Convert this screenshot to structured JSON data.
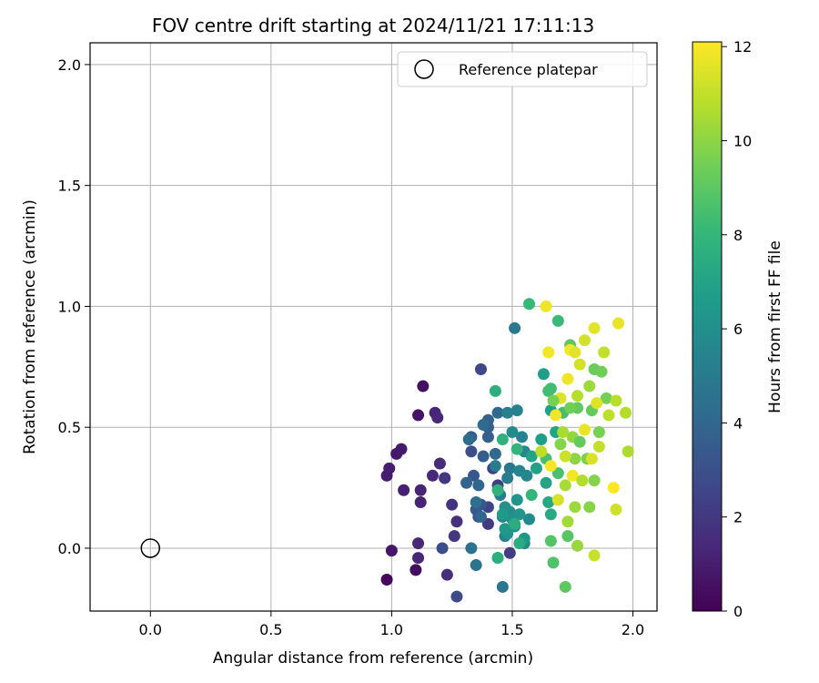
{
  "chart_data": {
    "type": "scatter",
    "title": "FOV centre drift starting at 2024/11/21 17:11:13",
    "xlabel": "Angular distance from reference (arcmin)",
    "ylabel": "Rotation from reference (arcmin)",
    "xlim": [
      -0.25,
      2.1
    ],
    "ylim": [
      -0.26,
      2.09
    ],
    "xticks": [
      0.0,
      0.5,
      1.0,
      1.5,
      2.0
    ],
    "xtick_labels": [
      "0.0",
      "0.5",
      "1.0",
      "1.5",
      "2.0"
    ],
    "yticks": [
      0.0,
      0.5,
      1.0,
      1.5,
      2.0
    ],
    "ytick_labels": [
      "0.0",
      "0.5",
      "1.0",
      "1.5",
      "2.0"
    ],
    "grid": true,
    "legend": {
      "placement": "top-right",
      "entries": [
        "Reference platepar"
      ]
    },
    "reference_point": {
      "x": 0.0,
      "y": 0.0,
      "label": "Reference platepar"
    },
    "colorbar": {
      "label": "Hours from first FF file",
      "min": 0,
      "max": 12.1,
      "ticks": [
        0,
        2,
        4,
        6,
        8,
        10,
        12
      ],
      "tick_labels": [
        "0",
        "2",
        "4",
        "6",
        "8",
        "10",
        "12"
      ],
      "colormap": "viridis",
      "colormap_stops": [
        "#440154",
        "#482878",
        "#3e4989",
        "#31688e",
        "#26828e",
        "#1f9e89",
        "#35b779",
        "#6ece58",
        "#b5de2b",
        "#fde725"
      ]
    },
    "point_columns": [
      "x",
      "y",
      "hours"
    ],
    "points": [
      [
        0.98,
        -0.13,
        0.2
      ],
      [
        1.1,
        -0.09,
        0.4
      ],
      [
        1.13,
        0.67,
        0.5
      ],
      [
        1.11,
        0.55,
        0.6
      ],
      [
        1.0,
        -0.01,
        0.7
      ],
      [
        1.02,
        0.39,
        0.8
      ],
      [
        1.04,
        0.41,
        0.9
      ],
      [
        0.99,
        0.33,
        1.0
      ],
      [
        0.98,
        0.3,
        1.0
      ],
      [
        1.05,
        0.24,
        1.1
      ],
      [
        1.12,
        0.24,
        1.2
      ],
      [
        1.12,
        0.19,
        1.2
      ],
      [
        1.18,
        0.56,
        1.2
      ],
      [
        1.11,
        0.02,
        1.3
      ],
      [
        1.11,
        -0.04,
        1.3
      ],
      [
        1.17,
        0.3,
        1.4
      ],
      [
        1.19,
        0.54,
        1.4
      ],
      [
        1.2,
        0.35,
        1.5
      ],
      [
        1.22,
        0.29,
        1.6
      ],
      [
        1.23,
        -0.11,
        1.6
      ],
      [
        1.27,
        0.11,
        1.7
      ],
      [
        1.25,
        0.18,
        1.8
      ],
      [
        1.26,
        0.05,
        1.9
      ],
      [
        1.22,
        0.29,
        2.0
      ],
      [
        1.4,
        0.1,
        2.1
      ],
      [
        1.49,
        -0.02,
        2.2
      ],
      [
        1.44,
        0.26,
        2.3
      ],
      [
        1.42,
        0.33,
        2.4
      ],
      [
        1.4,
        0.17,
        2.5
      ],
      [
        1.37,
        0.74,
        2.6
      ],
      [
        1.27,
        -0.2,
        2.8
      ],
      [
        1.21,
        0.0,
        2.9
      ],
      [
        1.33,
        0.4,
        3.0
      ],
      [
        1.36,
        0.13,
        3.1
      ],
      [
        1.37,
        0.18,
        3.2
      ],
      [
        1.34,
        0.3,
        3.3
      ],
      [
        1.35,
        0.16,
        3.4
      ],
      [
        1.33,
        0.46,
        3.5
      ],
      [
        1.38,
        0.38,
        3.6
      ],
      [
        1.4,
        0.46,
        3.6
      ],
      [
        1.4,
        0.5,
        3.7
      ],
      [
        1.4,
        0.53,
        3.8
      ],
      [
        1.31,
        0.27,
        3.9
      ],
      [
        1.36,
        0.26,
        4.0
      ],
      [
        1.37,
        0.13,
        4.0
      ],
      [
        1.43,
        0.39,
        4.1
      ],
      [
        1.44,
        0.56,
        4.1
      ],
      [
        1.38,
        0.51,
        4.2
      ],
      [
        1.32,
        0.45,
        4.3
      ],
      [
        1.35,
        0.19,
        4.4
      ],
      [
        1.33,
        0.0,
        4.5
      ],
      [
        1.35,
        -0.07,
        4.6
      ],
      [
        1.46,
        -0.16,
        4.7
      ],
      [
        1.49,
        0.33,
        4.8
      ],
      [
        1.51,
        0.91,
        4.9
      ],
      [
        1.43,
        0.34,
        5.0
      ],
      [
        1.48,
        0.29,
        5.0
      ],
      [
        1.45,
        0.22,
        5.1
      ],
      [
        1.46,
        0.13,
        5.2
      ],
      [
        1.47,
        0.05,
        5.2
      ],
      [
        1.48,
        0.56,
        5.3
      ],
      [
        1.52,
        0.57,
        5.4
      ],
      [
        1.54,
        0.46,
        5.4
      ],
      [
        1.53,
        0.32,
        5.5
      ],
      [
        1.55,
        0.4,
        5.6
      ],
      [
        1.56,
        0.3,
        5.6
      ],
      [
        1.55,
        0.02,
        5.7
      ],
      [
        1.57,
        0.12,
        5.8
      ],
      [
        1.5,
        0.48,
        5.8
      ],
      [
        1.49,
        0.15,
        5.9
      ],
      [
        1.44,
        -0.04,
        6.0
      ],
      [
        1.51,
        0.09,
        6.1
      ],
      [
        1.47,
        0.17,
        6.1
      ],
      [
        1.5,
        0.12,
        6.2
      ],
      [
        1.48,
        0.06,
        6.2
      ],
      [
        1.52,
        0.2,
        6.3
      ],
      [
        1.53,
        0.14,
        6.3
      ],
      [
        1.55,
        0.04,
        6.4
      ],
      [
        1.47,
        0.08,
        6.5
      ],
      [
        1.46,
        0.14,
        6.6
      ],
      [
        1.66,
        0.57,
        6.7
      ],
      [
        1.63,
        0.72,
        6.8
      ],
      [
        1.62,
        0.45,
        6.8
      ],
      [
        1.6,
        0.33,
        6.9
      ],
      [
        1.68,
        0.48,
        7.0
      ],
      [
        1.58,
        0.38,
        7.0
      ],
      [
        1.64,
        0.27,
        7.1
      ],
      [
        1.65,
        0.19,
        7.2
      ],
      [
        1.66,
        0.14,
        7.3
      ],
      [
        1.53,
        0.02,
        7.4
      ],
      [
        1.51,
        0.1,
        7.5
      ],
      [
        1.44,
        -0.04,
        7.6
      ],
      [
        1.43,
        0.65,
        7.6
      ],
      [
        1.46,
        0.45,
        7.7
      ],
      [
        1.44,
        0.24,
        7.8
      ],
      [
        1.52,
        0.41,
        7.9
      ],
      [
        1.58,
        0.22,
        8.0
      ],
      [
        1.57,
        1.01,
        8.1
      ],
      [
        1.69,
        0.94,
        8.2
      ],
      [
        1.66,
        0.66,
        8.3
      ],
      [
        1.65,
        0.65,
        8.4
      ],
      [
        1.64,
        0.37,
        8.5
      ],
      [
        1.71,
        0.56,
        8.5
      ],
      [
        1.69,
        0.31,
        8.6
      ],
      [
        1.67,
        -0.06,
        8.7
      ],
      [
        1.66,
        0.03,
        8.8
      ],
      [
        1.73,
        0.05,
        8.9
      ],
      [
        1.72,
        -0.16,
        9.0
      ],
      [
        1.74,
        0.84,
        9.0
      ],
      [
        1.77,
        0.58,
        9.1
      ],
      [
        1.83,
        0.57,
        9.2
      ],
      [
        1.84,
        0.74,
        9.3
      ],
      [
        1.87,
        0.73,
        9.4
      ],
      [
        1.89,
        0.62,
        9.5
      ],
      [
        1.86,
        0.48,
        9.6
      ],
      [
        1.81,
        0.37,
        9.7
      ],
      [
        1.84,
        0.28,
        9.8
      ],
      [
        1.82,
        0.17,
        9.9
      ],
      [
        1.76,
        0.37,
        10.0
      ],
      [
        1.75,
        0.46,
        10.1
      ],
      [
        1.77,
        0.01,
        10.2
      ],
      [
        1.76,
        0.17,
        10.3
      ],
      [
        1.73,
        0.11,
        10.4
      ],
      [
        1.72,
        0.26,
        10.5
      ],
      [
        1.98,
        0.4,
        10.6
      ],
      [
        1.97,
        0.56,
        10.7
      ],
      [
        1.93,
        0.61,
        10.8
      ],
      [
        1.9,
        0.55,
        10.9
      ],
      [
        1.88,
        0.81,
        11.0
      ],
      [
        1.84,
        -0.03,
        11.1
      ],
      [
        1.93,
        0.16,
        11.2
      ],
      [
        1.8,
        0.86,
        11.3
      ],
      [
        1.83,
        0.37,
        11.4
      ],
      [
        1.85,
        0.6,
        11.5
      ],
      [
        1.84,
        0.91,
        11.6
      ],
      [
        1.94,
        0.93,
        11.7
      ],
      [
        1.64,
        1.0,
        11.8
      ],
      [
        1.65,
        0.81,
        11.9
      ],
      [
        1.74,
        0.82,
        12.0
      ],
      [
        1.92,
        0.25,
        12.1
      ],
      [
        1.78,
        0.76,
        11.3
      ],
      [
        1.76,
        0.81,
        11.6
      ],
      [
        1.73,
        0.7,
        11.8
      ],
      [
        1.7,
        0.62,
        11.5
      ],
      [
        1.68,
        0.55,
        11.9
      ],
      [
        1.8,
        0.49,
        11.7
      ],
      [
        1.72,
        0.38,
        11.2
      ],
      [
        1.75,
        0.3,
        11.9
      ],
      [
        1.69,
        0.2,
        11.4
      ],
      [
        1.66,
        0.34,
        12.0
      ],
      [
        1.77,
        0.63,
        10.8
      ],
      [
        1.71,
        0.48,
        10.5
      ],
      [
        1.62,
        0.4,
        10.9
      ],
      [
        1.79,
        0.28,
        10.7
      ],
      [
        1.82,
        0.67,
        10.3
      ],
      [
        1.86,
        0.42,
        11.0
      ],
      [
        1.7,
        0.43,
        9.8
      ],
      [
        1.74,
        0.58,
        9.4
      ],
      [
        1.67,
        0.61,
        9.6
      ],
      [
        1.78,
        0.44,
        9.2
      ]
    ]
  }
}
